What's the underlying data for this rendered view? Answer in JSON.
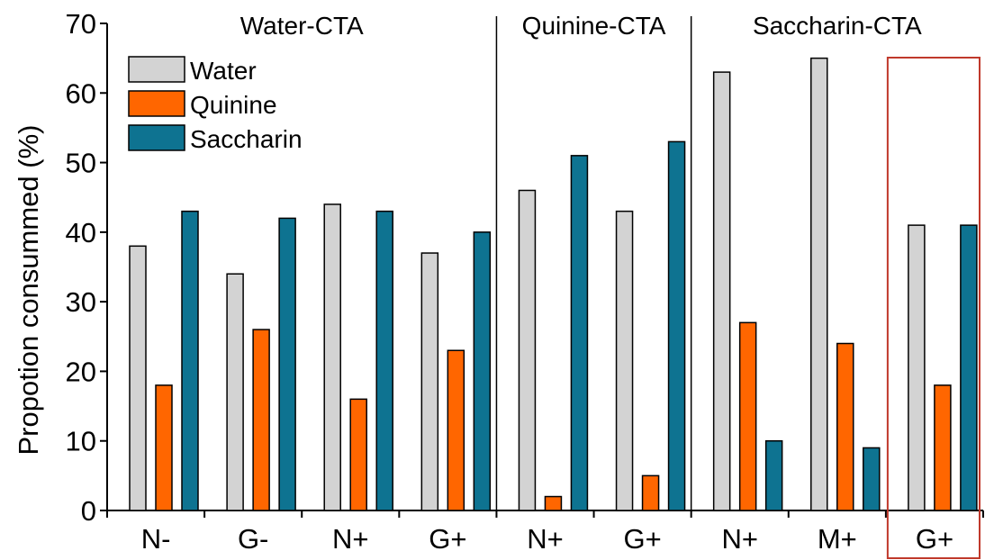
{
  "chart_data": {
    "type": "bar",
    "title": "",
    "xlabel": "",
    "ylabel": "Propotion consummed (%)",
    "ylim": [
      0,
      70
    ],
    "yticks": [
      0,
      10,
      20,
      30,
      40,
      50,
      60,
      70
    ],
    "grid": false,
    "legend_position": "top-left",
    "categories": [
      "N-",
      "G-",
      "N+",
      "G+",
      "N+",
      "G+",
      "N+",
      "M+",
      "G+"
    ],
    "groups": [
      {
        "label": "Water-CTA",
        "categories": [
          0,
          1,
          2,
          3
        ]
      },
      {
        "label": "Quinine-CTA",
        "categories": [
          4,
          5
        ]
      },
      {
        "label": "Saccharin-CTA",
        "categories": [
          6,
          7,
          8
        ]
      }
    ],
    "highlighted_category": 8,
    "series": [
      {
        "name": "Water",
        "color": "#d3d3d3",
        "values": [
          38,
          34,
          44,
          37,
          46,
          43,
          63,
          65,
          41
        ]
      },
      {
        "name": "Quinine",
        "color": "#ff6600",
        "values": [
          18,
          26,
          16,
          23,
          2,
          5,
          27,
          24,
          18
        ]
      },
      {
        "name": "Saccharin",
        "color": "#0e7391",
        "values": [
          43,
          42,
          43,
          40,
          51,
          53,
          10,
          9,
          41
        ]
      }
    ],
    "highlight_color": "#c0392b"
  }
}
